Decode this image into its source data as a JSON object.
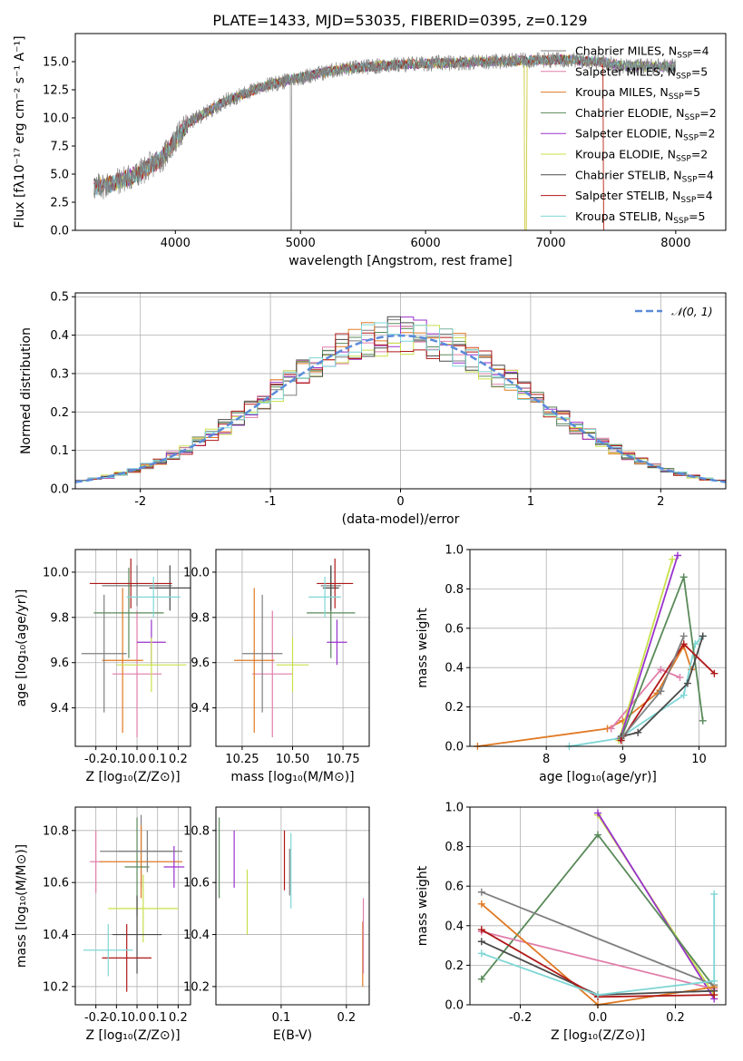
{
  "title": "PLATE=1433, MJD=53035, FIBERID=0395, z=0.129",
  "series": [
    {
      "name": "Chabrier MILES",
      "nssp": "4",
      "color": "#7f7f7f"
    },
    {
      "name": "Salpeter MILES",
      "nssp": "5",
      "color": "#e07eaa"
    },
    {
      "name": "Kroupa MILES",
      "nssp": "5",
      "color": "#e07a24"
    },
    {
      "name": "Chabrier ELODIE",
      "nssp": "2",
      "color": "#5a8a5a"
    },
    {
      "name": "Salpeter ELODIE",
      "nssp": "2",
      "color": "#9932cc"
    },
    {
      "name": "Kroupa ELODIE",
      "nssp": "2",
      "color": "#c8e04a"
    },
    {
      "name": "Chabrier STELIB",
      "nssp": "4",
      "color": "#4a4a4a"
    },
    {
      "name": "Salpeter STELIB",
      "nssp": "4",
      "color": "#b01818"
    },
    {
      "name": "Kroupa STELIB",
      "nssp": "5",
      "color": "#7fd6d6"
    }
  ],
  "chart_data": [
    {
      "type": "line",
      "xlabel": "wavelength [Angstrom, rest frame]",
      "ylabel": "Flux [fλ10⁻¹⁷ erg cm⁻² s⁻¹ A⁻¹]",
      "xlim": [
        3200,
        8400
      ],
      "ylim": [
        0,
        17.5
      ],
      "xticks": [
        4000,
        5000,
        6000,
        7000,
        8000
      ],
      "yticks": [
        0.0,
        2.5,
        5.0,
        7.5,
        10.0,
        12.5,
        15.0
      ],
      "legend": "right",
      "x": [
        3350,
        3500,
        3700,
        3900,
        4100,
        4400,
        4700,
        5000,
        5300,
        5600,
        5900,
        6200,
        6500,
        6800,
        7100,
        7400,
        7600
      ],
      "y": [
        3.8,
        4.2,
        5.0,
        6.5,
        9.5,
        11.5,
        12.8,
        13.6,
        14.3,
        14.6,
        14.8,
        14.9,
        15.0,
        15.1,
        15.2,
        15.0,
        14.6
      ]
    },
    {
      "type": "line",
      "xlabel": "(data-model)/error",
      "ylabel": "Normed distribution",
      "xlim": [
        -2.5,
        2.5
      ],
      "ylim": [
        0,
        0.51
      ],
      "xticks": [
        -2,
        -1,
        0,
        1,
        2
      ],
      "yticks": [
        0.0,
        0.1,
        0.2,
        0.3,
        0.4,
        0.5
      ],
      "legend": "top-right",
      "reference_label": "𝒩(0, 1)"
    },
    {
      "type": "scatter",
      "xlabel": "Z [log₁₀(Z/Z⊙)]",
      "ylabel": "age  [log₁₀(age/yr)]",
      "xlim": [
        -0.3,
        0.26
      ],
      "ylim": [
        9.23,
        10.1
      ],
      "xticks": [
        -0.2,
        -0.1,
        0.0,
        0.1,
        0.2
      ],
      "yticks": [
        9.4,
        9.6,
        9.8,
        10.0
      ],
      "points": [
        {
          "x": 0.0,
          "y": 9.94,
          "xerr": 0.17,
          "yerr": 0.09
        },
        {
          "x": 0.0,
          "y": 9.55,
          "xerr": 0.12,
          "yerr": 0.28
        },
        {
          "x": -0.07,
          "y": 9.61,
          "xerr": 0.1,
          "yerr": 0.32
        },
        {
          "x": -0.04,
          "y": 9.82,
          "xerr": 0.17,
          "yerr": 0.2
        },
        {
          "x": 0.07,
          "y": 9.69,
          "xerr": 0.07,
          "yerr": 0.1
        },
        {
          "x": 0.07,
          "y": 9.59,
          "xerr": 0.17,
          "yerr": 0.12
        },
        {
          "x": 0.16,
          "y": 9.93,
          "xerr": 0.1,
          "yerr": 0.1
        },
        {
          "x": -0.03,
          "y": 9.95,
          "xerr": 0.2,
          "yerr": 0.11
        },
        {
          "x": 0.08,
          "y": 9.89,
          "xerr": 0.13,
          "yerr": 0.09
        },
        {
          "x": -0.16,
          "y": 9.64,
          "xerr": 0.11,
          "yerr": 0.26
        }
      ]
    },
    {
      "type": "scatter",
      "xlabel": "mass [log₁₀(M/M⊙)]",
      "ylabel": "",
      "xlim": [
        10.12,
        10.88
      ],
      "ylim": [
        9.23,
        10.1
      ],
      "xticks": [
        10.25,
        10.5,
        10.75
      ],
      "yticks": [
        9.4,
        9.6,
        9.8,
        10.0
      ],
      "points": [
        {
          "x": 10.69,
          "y": 9.94,
          "xerr": 0.05,
          "yerr": 0.09
        },
        {
          "x": 10.4,
          "y": 9.55,
          "xerr": 0.1,
          "yerr": 0.28
        },
        {
          "x": 10.31,
          "y": 9.61,
          "xerr": 0.1,
          "yerr": 0.32
        },
        {
          "x": 10.69,
          "y": 9.82,
          "xerr": 0.12,
          "yerr": 0.2
        },
        {
          "x": 10.72,
          "y": 9.69,
          "xerr": 0.05,
          "yerr": 0.1
        },
        {
          "x": 10.5,
          "y": 9.59,
          "xerr": 0.08,
          "yerr": 0.12
        },
        {
          "x": 10.69,
          "y": 9.93,
          "xerr": 0.04,
          "yerr": 0.1
        },
        {
          "x": 10.71,
          "y": 9.95,
          "xerr": 0.09,
          "yerr": 0.11
        },
        {
          "x": 10.66,
          "y": 9.89,
          "xerr": 0.08,
          "yerr": 0.09
        },
        {
          "x": 10.35,
          "y": 9.64,
          "xerr": 0.1,
          "yerr": 0.26
        }
      ]
    },
    {
      "type": "line",
      "xlabel": "age  [log₁₀(age/yr)]",
      "ylabel": "mass weight",
      "xlim": [
        7.0,
        10.35
      ],
      "ylim": [
        0,
        1.0
      ],
      "xticks": [
        8,
        9,
        10
      ],
      "yticks": [
        0.0,
        0.2,
        0.4,
        0.6,
        0.8,
        1.0
      ]
    },
    {
      "type": "scatter",
      "xlabel": "Z [log₁₀(Z/Z⊙)]",
      "ylabel": "mass [log₁₀(M/M⊙)]",
      "xlim": [
        -0.3,
        0.26
      ],
      "ylim": [
        10.13,
        10.89
      ],
      "xticks": [
        -0.2,
        -0.1,
        0.0,
        0.1,
        0.2
      ],
      "yticks": [
        10.2,
        10.4,
        10.6,
        10.8
      ]
    },
    {
      "type": "scatter",
      "xlabel": "E(B-V)",
      "ylabel": "",
      "xlim": [
        0.0,
        0.235
      ],
      "ylim": [
        10.13,
        10.89
      ],
      "xticks": [
        0.1,
        0.2
      ],
      "yticks": [
        10.2,
        10.4,
        10.6,
        10.8
      ]
    },
    {
      "type": "line",
      "xlabel": "Z [log₁₀(Z/Z⊙)]",
      "ylabel": "mass weight",
      "xlim": [
        -0.33,
        0.33
      ],
      "ylim": [
        0,
        1.0
      ],
      "xticks": [
        -0.2,
        0.0,
        0.2
      ],
      "yticks": [
        0.0,
        0.2,
        0.4,
        0.6,
        0.8,
        1.0
      ]
    }
  ]
}
